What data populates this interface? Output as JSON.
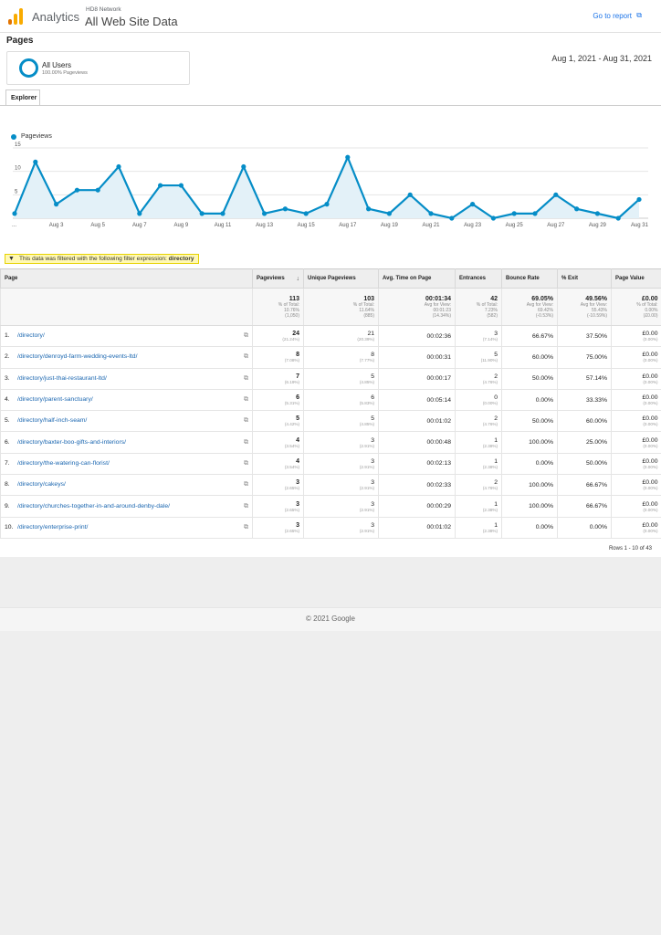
{
  "header": {
    "app_name": "Analytics",
    "account": "HD8 Network",
    "view": "All Web Site Data",
    "go_to_report": "Go to report"
  },
  "page_title": "Pages",
  "segment": {
    "name": "All Users",
    "sub": "100.00% Pageviews"
  },
  "date_range": "Aug 1, 2021 - Aug 31, 2021",
  "tab": "Explorer",
  "chart_data": {
    "type": "area",
    "series": [
      {
        "name": "Pageviews",
        "color": "#058dc7",
        "values": [
          1,
          12,
          3,
          6,
          6,
          11,
          1,
          7,
          7,
          1,
          1,
          11,
          1,
          2,
          1,
          3,
          13,
          2,
          1,
          5,
          1,
          0,
          3,
          0,
          1,
          1,
          5,
          2,
          1,
          0,
          4
        ]
      }
    ],
    "x_labels": [
      "...",
      "Aug 3",
      "Aug 5",
      "Aug 7",
      "Aug 9",
      "Aug 11",
      "Aug 13",
      "Aug 15",
      "Aug 17",
      "Aug 19",
      "Aug 21",
      "Aug 23",
      "Aug 25",
      "Aug 27",
      "Aug 29",
      "Aug 31"
    ],
    "y_ticks": [
      "15",
      "10",
      "5"
    ],
    "ylim": [
      0,
      15
    ],
    "grid": true
  },
  "filter_note": {
    "text": "This data was filtered with the following filter expression:",
    "expression": "directory"
  },
  "table": {
    "headers": [
      "Page",
      "Pageviews",
      "Unique Pageviews",
      "Avg. Time on Page",
      "Entrances",
      "Bounce Rate",
      "% Exit",
      "Page Value"
    ],
    "totals": [
      {
        "value": "113",
        "l1": "% of Total:",
        "l2": "10.76%",
        "l3": "(1,050)"
      },
      {
        "value": "103",
        "l1": "% of Total:",
        "l2": "11.64%",
        "l3": "(885)"
      },
      {
        "value": "00:01:34",
        "l1": "Avg for View:",
        "l2": "00:01:23",
        "l3": "(14.34%)"
      },
      {
        "value": "42",
        "l1": "% of Total:",
        "l2": "7.23%",
        "l3": "(582)"
      },
      {
        "value": "69.05%",
        "l1": "Avg for View:",
        "l2": "69.42%",
        "l3": "(-0.53%)"
      },
      {
        "value": "49.56%",
        "l1": "Avg for View:",
        "l2": "55.43%",
        "l3": "(-10.59%)"
      },
      {
        "value": "£0.00",
        "l1": "% of Total:",
        "l2": "0.00%",
        "l3": "(£0.00)"
      }
    ],
    "rows": [
      {
        "n": "1.",
        "page": "/directory/",
        "pv": "24",
        "pv_pct": "(21.24%)",
        "upv": "21",
        "upv_pct": "(20.39%)",
        "time": "00:02:36",
        "ent": "3",
        "ent_pct": "(7.14%)",
        "bounce": "66.67%",
        "exit": "37.50%",
        "value": "£0.00",
        "value_pct": "(0.00%)"
      },
      {
        "n": "2.",
        "page": "/directory/denroyd-farm-wedding-events-ltd/",
        "pv": "8",
        "pv_pct": "(7.08%)",
        "upv": "8",
        "upv_pct": "(7.77%)",
        "time": "00:00:31",
        "ent": "5",
        "ent_pct": "(11.90%)",
        "bounce": "60.00%",
        "exit": "75.00%",
        "value": "£0.00",
        "value_pct": "(0.00%)"
      },
      {
        "n": "3.",
        "page": "/directory/just-thai-restaurant-ltd/",
        "pv": "7",
        "pv_pct": "(6.19%)",
        "upv": "5",
        "upv_pct": "(4.85%)",
        "time": "00:00:17",
        "ent": "2",
        "ent_pct": "(4.76%)",
        "bounce": "50.00%",
        "exit": "57.14%",
        "value": "£0.00",
        "value_pct": "(0.00%)"
      },
      {
        "n": "4.",
        "page": "/directory/parent-sanctuary/",
        "pv": "6",
        "pv_pct": "(5.31%)",
        "upv": "6",
        "upv_pct": "(5.83%)",
        "time": "00:05:14",
        "ent": "0",
        "ent_pct": "(0.00%)",
        "bounce": "0.00%",
        "exit": "33.33%",
        "value": "£0.00",
        "value_pct": "(0.00%)"
      },
      {
        "n": "5.",
        "page": "/directory/half-inch-seam/",
        "pv": "5",
        "pv_pct": "(4.42%)",
        "upv": "5",
        "upv_pct": "(4.85%)",
        "time": "00:01:02",
        "ent": "2",
        "ent_pct": "(4.76%)",
        "bounce": "50.00%",
        "exit": "60.00%",
        "value": "£0.00",
        "value_pct": "(0.00%)"
      },
      {
        "n": "6.",
        "page": "/directory/baxter-boo-gifts-and-interiors/",
        "pv": "4",
        "pv_pct": "(3.54%)",
        "upv": "3",
        "upv_pct": "(2.91%)",
        "time": "00:00:48",
        "ent": "1",
        "ent_pct": "(2.38%)",
        "bounce": "100.00%",
        "exit": "25.00%",
        "value": "£0.00",
        "value_pct": "(0.00%)"
      },
      {
        "n": "7.",
        "page": "/directory/the-watering-can-florist/",
        "pv": "4",
        "pv_pct": "(3.54%)",
        "upv": "3",
        "upv_pct": "(2.91%)",
        "time": "00:02:13",
        "ent": "1",
        "ent_pct": "(2.38%)",
        "bounce": "0.00%",
        "exit": "50.00%",
        "value": "£0.00",
        "value_pct": "(0.00%)"
      },
      {
        "n": "8.",
        "page": "/directory/cakeys/",
        "pv": "3",
        "pv_pct": "(2.65%)",
        "upv": "3",
        "upv_pct": "(2.91%)",
        "time": "00:02:33",
        "ent": "2",
        "ent_pct": "(4.76%)",
        "bounce": "100.00%",
        "exit": "66.67%",
        "value": "£0.00",
        "value_pct": "(0.00%)"
      },
      {
        "n": "9.",
        "page": "/directory/churches-together-in-and-around-denby-dale/",
        "pv": "3",
        "pv_pct": "(2.65%)",
        "upv": "3",
        "upv_pct": "(2.91%)",
        "time": "00:00:29",
        "ent": "1",
        "ent_pct": "(2.38%)",
        "bounce": "100.00%",
        "exit": "66.67%",
        "value": "£0.00",
        "value_pct": "(0.00%)"
      },
      {
        "n": "10.",
        "page": "/directory/enterprise-print/",
        "pv": "3",
        "pv_pct": "(2.65%)",
        "upv": "3",
        "upv_pct": "(2.91%)",
        "time": "00:01:02",
        "ent": "1",
        "ent_pct": "(2.38%)",
        "bounce": "0.00%",
        "exit": "0.00%",
        "value": "£0.00",
        "value_pct": "(0.00%)"
      }
    ]
  },
  "rows_info": "Rows 1 - 10 of 43",
  "copyright": "© 2021 Google"
}
